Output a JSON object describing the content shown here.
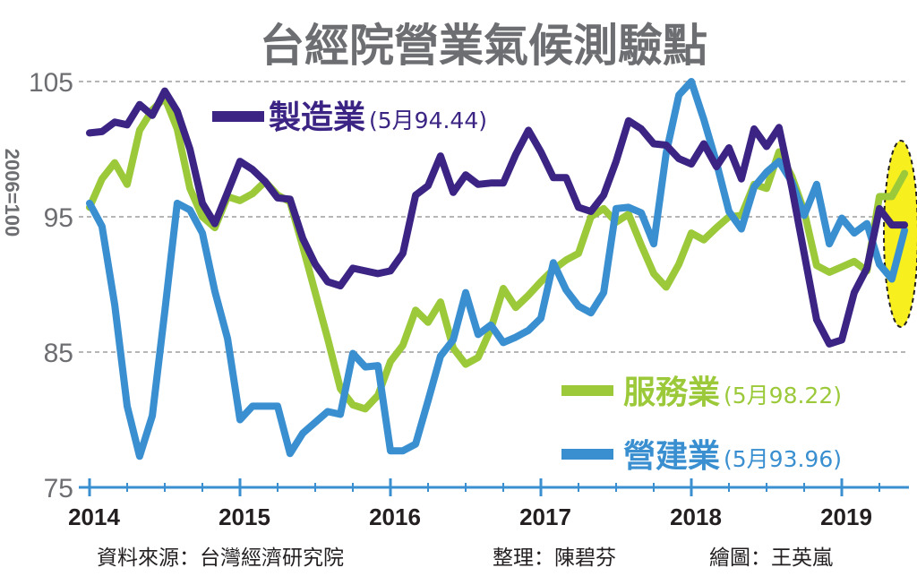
{
  "chart_data": {
    "type": "line",
    "title": "台經院營業氣候測驗點",
    "ylabel": "2006=100",
    "ylim": [
      75,
      105
    ],
    "yticks": [
      "105",
      "95",
      "85",
      "75"
    ],
    "xticks": [
      "2014",
      "2015",
      "2016",
      "2017",
      "2018",
      "2019"
    ],
    "grid": true,
    "legend_position": "right",
    "series": [
      {
        "name": "製造業",
        "latest": "(5月94.44)",
        "color": "#3b2483",
        "points": [
          [
            2014.0,
            101.2
          ],
          [
            2014.083,
            101.3
          ],
          [
            2014.167,
            102.0
          ],
          [
            2014.25,
            101.8
          ],
          [
            2014.333,
            103.3
          ],
          [
            2014.417,
            102.5
          ],
          [
            2014.5,
            104.3
          ],
          [
            2014.583,
            102.8
          ],
          [
            2014.667,
            100.0
          ],
          [
            2014.75,
            96.0
          ],
          [
            2014.833,
            94.5
          ],
          [
            2014.917,
            96.8
          ],
          [
            2015.0,
            99.1
          ],
          [
            2015.083,
            98.5
          ],
          [
            2015.167,
            97.6
          ],
          [
            2015.25,
            96.4
          ],
          [
            2015.333,
            96.3
          ],
          [
            2015.417,
            93.4
          ],
          [
            2015.5,
            91.5
          ],
          [
            2015.583,
            90.2
          ],
          [
            2015.667,
            89.9
          ],
          [
            2015.75,
            91.2
          ],
          [
            2015.833,
            91.0
          ],
          [
            2015.917,
            90.8
          ],
          [
            2016.0,
            91.0
          ],
          [
            2016.083,
            92.3
          ],
          [
            2016.167,
            96.6
          ],
          [
            2016.25,
            97.3
          ],
          [
            2016.333,
            99.5
          ],
          [
            2016.417,
            96.8
          ],
          [
            2016.5,
            98.1
          ],
          [
            2016.583,
            97.4
          ],
          [
            2016.667,
            97.5
          ],
          [
            2016.75,
            97.5
          ],
          [
            2016.833,
            99.6
          ],
          [
            2016.917,
            101.4
          ],
          [
            2017.0,
            99.8
          ],
          [
            2017.083,
            97.9
          ],
          [
            2017.167,
            97.9
          ],
          [
            2017.25,
            95.7
          ],
          [
            2017.333,
            95.4
          ],
          [
            2017.417,
            96.6
          ],
          [
            2017.5,
            99.1
          ],
          [
            2017.583,
            102.1
          ],
          [
            2017.667,
            101.5
          ],
          [
            2017.75,
            100.4
          ],
          [
            2017.833,
            100.3
          ],
          [
            2017.917,
            99.3
          ],
          [
            2018.0,
            98.9
          ],
          [
            2018.083,
            100.4
          ],
          [
            2018.167,
            98.7
          ],
          [
            2018.25,
            100.1
          ],
          [
            2018.333,
            97.8
          ],
          [
            2018.417,
            101.5
          ],
          [
            2018.5,
            100.2
          ],
          [
            2018.583,
            101.6
          ],
          [
            2018.667,
            97.2
          ],
          [
            2018.75,
            92.3
          ],
          [
            2018.833,
            87.4
          ],
          [
            2018.917,
            85.6
          ],
          [
            2019.0,
            85.9
          ],
          [
            2019.083,
            89.4
          ],
          [
            2019.167,
            91.2
          ],
          [
            2019.25,
            95.6
          ],
          [
            2019.333,
            94.4
          ],
          [
            2019.417,
            94.4
          ]
        ]
      },
      {
        "name": "服務業",
        "latest": "(5月98.22)",
        "color": "#9bc93a",
        "points": [
          [
            2014.0,
            95.7
          ],
          [
            2014.083,
            97.8
          ],
          [
            2014.167,
            99.0
          ],
          [
            2014.25,
            97.4
          ],
          [
            2014.333,
            101.4
          ],
          [
            2014.417,
            102.9
          ],
          [
            2014.5,
            103.8
          ],
          [
            2014.583,
            101.5
          ],
          [
            2014.667,
            97.1
          ],
          [
            2014.75,
            95.0
          ],
          [
            2014.833,
            94.2
          ],
          [
            2014.917,
            96.5
          ],
          [
            2015.0,
            96.2
          ],
          [
            2015.083,
            96.7
          ],
          [
            2015.167,
            97.6
          ],
          [
            2015.25,
            96.6
          ],
          [
            2015.333,
            96.1
          ],
          [
            2015.417,
            92.8
          ],
          [
            2015.5,
            89.4
          ],
          [
            2015.583,
            86.0
          ],
          [
            2015.667,
            82.3
          ],
          [
            2015.75,
            81.1
          ],
          [
            2015.833,
            80.8
          ],
          [
            2015.917,
            81.8
          ],
          [
            2016.0,
            84.3
          ],
          [
            2016.083,
            85.5
          ],
          [
            2016.167,
            88.1
          ],
          [
            2016.25,
            87.2
          ],
          [
            2016.333,
            88.7
          ],
          [
            2016.417,
            85.3
          ],
          [
            2016.5,
            84.1
          ],
          [
            2016.583,
            84.6
          ],
          [
            2016.667,
            86.7
          ],
          [
            2016.75,
            89.7
          ],
          [
            2016.833,
            88.3
          ],
          [
            2016.917,
            89.2
          ],
          [
            2017.0,
            90.2
          ],
          [
            2017.083,
            91.1
          ],
          [
            2017.167,
            91.8
          ],
          [
            2017.25,
            92.3
          ],
          [
            2017.333,
            95.0
          ],
          [
            2017.417,
            95.6
          ],
          [
            2017.5,
            94.6
          ],
          [
            2017.583,
            95.2
          ],
          [
            2017.667,
            92.9
          ],
          [
            2017.75,
            90.8
          ],
          [
            2017.833,
            89.8
          ],
          [
            2017.917,
            91.5
          ],
          [
            2018.0,
            93.8
          ],
          [
            2018.083,
            93.3
          ],
          [
            2018.167,
            94.2
          ],
          [
            2018.25,
            95.0
          ],
          [
            2018.333,
            95.1
          ],
          [
            2018.417,
            97.4
          ],
          [
            2018.5,
            97.1
          ],
          [
            2018.583,
            99.8
          ],
          [
            2018.667,
            98.0
          ],
          [
            2018.75,
            95.4
          ],
          [
            2018.833,
            91.4
          ],
          [
            2018.917,
            90.9
          ],
          [
            2019.0,
            91.3
          ],
          [
            2019.083,
            91.7
          ],
          [
            2019.167,
            91.0
          ],
          [
            2019.25,
            96.5
          ],
          [
            2019.333,
            96.5
          ],
          [
            2019.417,
            98.2
          ]
        ]
      },
      {
        "name": "營建業",
        "latest": "(5月93.96)",
        "color": "#3a8fd0",
        "points": [
          [
            2014.0,
            96.0
          ],
          [
            2014.083,
            94.3
          ],
          [
            2014.167,
            88.5
          ],
          [
            2014.25,
            81.0
          ],
          [
            2014.333,
            77.3
          ],
          [
            2014.417,
            80.3
          ],
          [
            2014.5,
            88.0
          ],
          [
            2014.583,
            96.0
          ],
          [
            2014.667,
            95.5
          ],
          [
            2014.75,
            93.8
          ],
          [
            2014.833,
            89.5
          ],
          [
            2014.917,
            86.0
          ],
          [
            2015.0,
            80.0
          ],
          [
            2015.083,
            81.0
          ],
          [
            2015.167,
            81.0
          ],
          [
            2015.25,
            81.0
          ],
          [
            2015.333,
            77.5
          ],
          [
            2015.417,
            79.0
          ],
          [
            2015.5,
            79.8
          ],
          [
            2015.583,
            80.6
          ],
          [
            2015.667,
            80.4
          ],
          [
            2015.75,
            84.9
          ],
          [
            2015.833,
            83.9
          ],
          [
            2015.917,
            84.0
          ],
          [
            2016.0,
            77.7
          ],
          [
            2016.083,
            77.7
          ],
          [
            2016.167,
            78.2
          ],
          [
            2016.25,
            81.4
          ],
          [
            2016.333,
            84.7
          ],
          [
            2016.417,
            85.9
          ],
          [
            2016.5,
            89.4
          ],
          [
            2016.583,
            86.3
          ],
          [
            2016.667,
            87.0
          ],
          [
            2016.75,
            85.7
          ],
          [
            2016.833,
            86.1
          ],
          [
            2016.917,
            86.6
          ],
          [
            2017.0,
            87.5
          ],
          [
            2017.083,
            91.6
          ],
          [
            2017.167,
            89.6
          ],
          [
            2017.25,
            88.4
          ],
          [
            2017.333,
            87.9
          ],
          [
            2017.417,
            89.4
          ],
          [
            2017.5,
            95.6
          ],
          [
            2017.583,
            95.7
          ],
          [
            2017.667,
            95.3
          ],
          [
            2017.75,
            93.0
          ],
          [
            2017.833,
            99.7
          ],
          [
            2017.917,
            104.0
          ],
          [
            2018.0,
            105.0
          ],
          [
            2018.083,
            102.2
          ],
          [
            2018.167,
            99.0
          ],
          [
            2018.25,
            95.4
          ],
          [
            2018.333,
            94.1
          ],
          [
            2018.417,
            97.2
          ],
          [
            2018.5,
            98.3
          ],
          [
            2018.583,
            99.1
          ],
          [
            2018.667,
            97.6
          ],
          [
            2018.75,
            95.1
          ],
          [
            2018.833,
            97.4
          ],
          [
            2018.917,
            93.0
          ],
          [
            2019.0,
            94.9
          ],
          [
            2019.083,
            93.8
          ],
          [
            2019.167,
            94.5
          ],
          [
            2019.25,
            91.5
          ],
          [
            2019.333,
            90.4
          ],
          [
            2019.417,
            94.0
          ]
        ]
      }
    ]
  },
  "footer": {
    "source": "資料來源：台灣經濟研究院",
    "editor": "整理：陳碧芬",
    "artist": "繪圖：王英嵐"
  }
}
